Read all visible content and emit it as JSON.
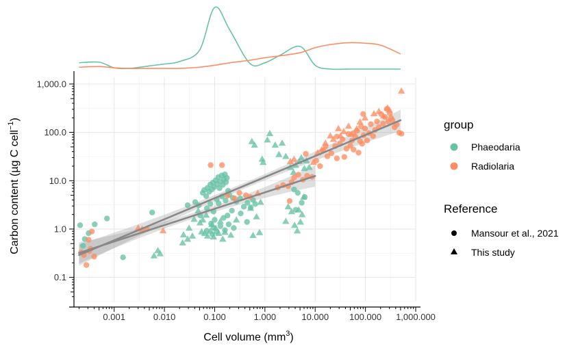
{
  "chart_data": {
    "type": "scatter",
    "title": "",
    "xlabel": "Cell volume (mm",
    "xlabel_sup": "3",
    "xlabel_close": ")",
    "ylabel": "Carbon content (µg C cell",
    "ylabel_sup": "−1",
    "ylabel_close": ")",
    "x_scale": "log10",
    "y_scale": "log10",
    "xlim": [
      0.0001585,
      1000
    ],
    "ylim": [
      0.0316,
      1380
    ],
    "x_ticks": [
      {
        "value": 0.001,
        "label": "0.001"
      },
      {
        "value": 0.01,
        "label": "0.010"
      },
      {
        "value": 0.1,
        "label": "0.100"
      },
      {
        "value": 1,
        "label": "1.000"
      },
      {
        "value": 10,
        "label": "10.000"
      },
      {
        "value": 100,
        "label": "100.000"
      },
      {
        "value": 1000,
        "label": "1,000.000"
      }
    ],
    "y_ticks": [
      {
        "value": 0.1,
        "label": "0.1"
      },
      {
        "value": 1,
        "label": "1.0"
      },
      {
        "value": 10,
        "label": "10.0"
      },
      {
        "value": 100,
        "label": "100.0"
      },
      {
        "value": 1000,
        "label": "1,000.0"
      }
    ],
    "grid": true,
    "legend": {
      "placement": "right",
      "group_title": "group",
      "groups": [
        {
          "name": "Phaeodaria",
          "color": "#66c2a5"
        },
        {
          "name": "Radiolaria",
          "color": "#fc8d62"
        }
      ],
      "reference_title": "Reference",
      "references": [
        {
          "name": "Mansour et al., 2021",
          "shape": "circle"
        },
        {
          "name": "This study",
          "shape": "triangle"
        }
      ]
    },
    "series": [
      {
        "group": "Phaeodaria",
        "reference": "Mansour et al., 2021",
        "points": [
          [
            0.00021,
            1.2
          ],
          [
            0.00024,
            0.45
          ],
          [
            0.00026,
            0.62
          ],
          [
            0.00031,
            0.82
          ],
          [
            0.00041,
            1.25
          ],
          [
            0.00072,
            1.65
          ],
          [
            0.0015,
            0.26
          ],
          [
            0.0057,
            2.2
          ],
          [
            0.029,
            3.1
          ],
          [
            0.041,
            3.6
          ],
          [
            0.048,
            3.1
          ],
          [
            0.052,
            1.9
          ],
          [
            0.058,
            5.6
          ],
          [
            0.062,
            6.4
          ],
          [
            0.068,
            4.8
          ],
          [
            0.072,
            7.1
          ],
          [
            0.078,
            5.9
          ],
          [
            0.082,
            8.3
          ],
          [
            0.088,
            6.6
          ],
          [
            0.092,
            9.1
          ],
          [
            0.098,
            7.4
          ],
          [
            0.105,
            10.2
          ],
          [
            0.112,
            8.5
          ],
          [
            0.118,
            11.8
          ],
          [
            0.125,
            7.0
          ],
          [
            0.13,
            9.6
          ],
          [
            0.138,
            12.8
          ],
          [
            0.145,
            8.2
          ],
          [
            0.152,
            10.6
          ],
          [
            0.16,
            13.5
          ],
          [
            0.168,
            9.3
          ],
          [
            0.175,
            11.4
          ],
          [
            0.185,
            6.2
          ],
          [
            0.07,
            2.7
          ],
          [
            0.082,
            3.3
          ],
          [
            0.095,
            2.3
          ],
          [
            0.11,
            4.1
          ],
          [
            0.12,
            3.4
          ],
          [
            0.14,
            4.7
          ],
          [
            0.165,
            3.9
          ],
          [
            0.195,
            5.1
          ],
          [
            0.23,
            4.4
          ],
          [
            0.27,
            3.7
          ],
          [
            0.32,
            4.3
          ],
          [
            0.38,
            2.9
          ],
          [
            0.45,
            3.5
          ],
          [
            0.52,
            2.8
          ],
          [
            0.58,
            4.0
          ],
          [
            0.64,
            3.3
          ],
          [
            0.22,
            2.4
          ],
          [
            0.33,
            2.1
          ],
          [
            0.085,
            1.3
          ],
          [
            0.095,
            1.05
          ],
          [
            0.11,
            0.88
          ],
          [
            0.13,
            1.15
          ],
          [
            0.16,
            0.95
          ],
          [
            0.19,
            1.25
          ],
          [
            0.24,
            1.05
          ],
          [
            0.1,
            1.55
          ],
          [
            0.15,
            1.7
          ],
          [
            0.44,
            1.4
          ],
          [
            0.18,
            1.9
          ],
          [
            0.07,
            0.92
          ],
          [
            0.09,
            0.78
          ],
          [
            4.5,
            5.6
          ],
          [
            5.4,
            3.5
          ],
          [
            6.2,
            4.6
          ],
          [
            3.8,
            6.6
          ],
          [
            4.1,
            2.5
          ]
        ]
      },
      {
        "group": "Phaeodaria",
        "reference": "This study",
        "points": [
          [
            0.0062,
            0.28
          ],
          [
            0.0074,
            0.36
          ],
          [
            0.0082,
            0.31
          ],
          [
            0.023,
            0.52
          ],
          [
            0.024,
            0.76
          ],
          [
            0.029,
            0.62
          ],
          [
            0.031,
            1.05
          ],
          [
            0.036,
            0.72
          ],
          [
            0.039,
            1.6
          ],
          [
            0.047,
            2.4
          ],
          [
            0.051,
            1.35
          ],
          [
            0.055,
            0.88
          ],
          [
            0.058,
            1.55
          ],
          [
            0.063,
            0.82
          ],
          [
            0.068,
            1.95
          ],
          [
            0.072,
            0.72
          ],
          [
            0.082,
            0.91
          ],
          [
            0.088,
            1.25
          ],
          [
            0.095,
            0.69
          ],
          [
            0.105,
            1.05
          ],
          [
            0.12,
            0.82
          ],
          [
            0.13,
            1.45
          ],
          [
            0.145,
            0.62
          ],
          [
            0.16,
            0.86
          ],
          [
            0.21,
            0.75
          ],
          [
            0.27,
            1.55
          ],
          [
            0.52,
            2.7
          ],
          [
            0.68,
            1.8
          ],
          [
            0.82,
            3.6
          ],
          [
            0.55,
            65
          ],
          [
            0.62,
            55
          ],
          [
            0.88,
            28
          ],
          [
            0.92,
            24
          ],
          [
            1.12,
            70
          ],
          [
            1.25,
            95
          ],
          [
            1.6,
            55
          ],
          [
            1.9,
            35
          ],
          [
            2.2,
            60
          ],
          [
            2.6,
            32
          ],
          [
            3.2,
            19
          ],
          [
            3.7,
            15
          ],
          [
            4.1,
            21
          ],
          [
            4.8,
            25
          ],
          [
            5.3,
            30
          ],
          [
            6.1,
            18
          ],
          [
            6.7,
            26
          ],
          [
            7.6,
            19
          ],
          [
            2.9,
            2.9
          ],
          [
            3.4,
            2.3
          ],
          [
            3.9,
            1.2
          ],
          [
            4.4,
            0.92
          ],
          [
            5.1,
            1.4
          ],
          [
            5.5,
            2.0
          ],
          [
            5.9,
            4.6
          ],
          [
            2.6,
            1.45
          ],
          [
            4.7,
            2.5
          ],
          [
            0.78,
            0.85
          ],
          [
            0.58,
            0.74
          ]
        ]
      },
      {
        "group": "Radiolaria",
        "reference": "Mansour et al., 2021",
        "points": [
          [
            0.00022,
            0.33
          ],
          [
            0.00025,
            0.29
          ],
          [
            0.00028,
            0.18
          ],
          [
            0.00031,
            0.6
          ],
          [
            0.00032,
            0.35
          ],
          [
            0.00034,
            0.39
          ],
          [
            0.00036,
            0.89
          ],
          [
            0.0004,
            0.27
          ],
          [
            0.0045,
            1.0
          ],
          [
            0.083,
            21
          ],
          [
            0.14,
            21
          ],
          [
            0.18,
            4.9
          ],
          [
            0.25,
            4.3
          ],
          [
            0.31,
            5.6
          ],
          [
            0.42,
            5.0
          ],
          [
            0.51,
            4.6
          ],
          [
            1.8,
            7.2
          ],
          [
            2.3,
            8.1
          ],
          [
            2.9,
            7.7
          ],
          [
            3.4,
            9.3
          ],
          [
            3.8,
            11.6
          ],
          [
            4.6,
            13.3
          ],
          [
            5.7,
            10.5
          ],
          [
            6.9,
            12.6
          ],
          [
            8.7,
            12.0
          ],
          [
            10.5,
            26
          ],
          [
            12.5,
            20
          ],
          [
            14.5,
            42
          ],
          [
            17.5,
            32
          ],
          [
            21,
            37
          ],
          [
            25,
            52
          ],
          [
            27,
            82
          ],
          [
            31,
            58
          ],
          [
            35,
            72
          ],
          [
            38,
            31
          ],
          [
            42,
            46
          ],
          [
            46,
            93
          ],
          [
            50,
            53
          ],
          [
            54,
            68
          ],
          [
            58,
            44
          ],
          [
            63,
            82
          ],
          [
            68,
            108
          ],
          [
            73,
            38
          ],
          [
            78,
            66
          ],
          [
            82,
            132
          ],
          [
            86,
            58
          ],
          [
            92,
            87
          ],
          [
            98,
            120
          ],
          [
            108,
            68
          ],
          [
            118,
            96
          ],
          [
            128,
            148
          ],
          [
            142,
            84
          ],
          [
            155,
            112
          ],
          [
            170,
            168
          ],
          [
            185,
            128
          ],
          [
            205,
            238
          ],
          [
            225,
            152
          ],
          [
            245,
            208
          ],
          [
            265,
            305
          ],
          [
            285,
            168
          ],
          [
            305,
            248
          ],
          [
            325,
            198
          ],
          [
            345,
            178
          ],
          [
            380,
            128
          ],
          [
            420,
            145
          ],
          [
            470,
            98
          ],
          [
            520,
            94
          ],
          [
            58,
            96
          ],
          [
            90,
            240
          ],
          [
            27,
            29
          ],
          [
            16,
            51
          ],
          [
            6.5,
            36
          ],
          [
            3.1,
            3.8
          ]
        ]
      },
      {
        "group": "Radiolaria",
        "reference": "This study",
        "points": [
          [
            0.003,
            1.05
          ],
          [
            0.0036,
            1.0
          ],
          [
            0.0094,
            0.93
          ],
          [
            0.72,
            5.5
          ],
          [
            3.2,
            25
          ],
          [
            3.8,
            28
          ],
          [
            9.2,
            24
          ],
          [
            11.2,
            38
          ],
          [
            13.5,
            44
          ],
          [
            16,
            60
          ],
          [
            20,
            85
          ],
          [
            23,
            72
          ],
          [
            29,
            120
          ],
          [
            32,
            85
          ],
          [
            37,
            105
          ],
          [
            46,
            135
          ],
          [
            52,
            92
          ],
          [
            67,
            118
          ],
          [
            78,
            165
          ],
          [
            98,
            200
          ],
          [
            148,
            245
          ],
          [
            185,
            272
          ],
          [
            228,
            218
          ],
          [
            275,
            322
          ],
          [
            300,
            290
          ],
          [
            520,
            720
          ]
        ]
      }
    ],
    "regression_lines": [
      {
        "reference": "Mansour et al., 2021",
        "x": [
          0.0002,
          10
        ],
        "y": [
          0.32,
          12.5
        ],
        "color": "#888888"
      },
      {
        "reference": "This study",
        "x": [
          0.0002,
          500
        ],
        "y": [
          0.29,
          178
        ],
        "color": "#888888"
      }
    ],
    "marginal_density": {
      "x_values": [
        0.0002,
        0.0005,
        0.001,
        0.002,
        0.005,
        0.01,
        0.02,
        0.05,
        0.1,
        0.2,
        0.5,
        1,
        2,
        5,
        10,
        20,
        50,
        100,
        200,
        500
      ],
      "Phaeodaria": [
        0.1,
        0.11,
        0.02,
        0.01,
        0.05,
        0.08,
        0.12,
        0.3,
        0.98,
        0.62,
        0.09,
        0.1,
        0.22,
        0.36,
        0.06,
        0.0,
        0.0,
        0.0,
        0.0,
        0.0
      ],
      "Radiolaria": [
        0.03,
        0.04,
        0.02,
        0.01,
        0.01,
        0.01,
        0.01,
        0.03,
        0.06,
        0.1,
        0.14,
        0.18,
        0.21,
        0.26,
        0.34,
        0.39,
        0.42,
        0.41,
        0.38,
        0.24
      ]
    }
  }
}
